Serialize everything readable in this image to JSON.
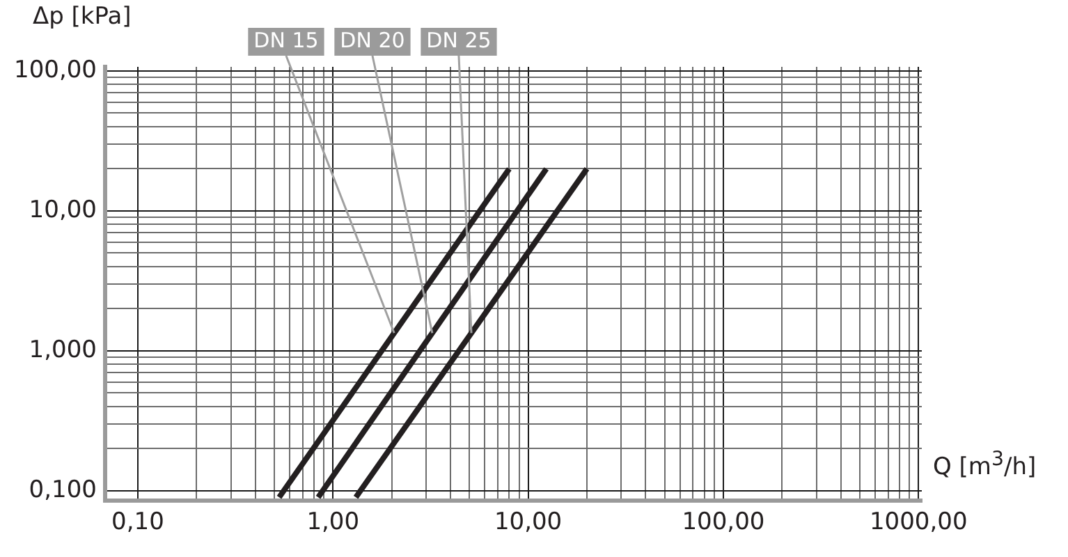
{
  "chart_data": {
    "type": "line",
    "xlabel": "Q [m$^{3}$/h]",
    "ylabel": "Δp [kPa]",
    "log": "xy",
    "grid": true,
    "legend": false,
    "marker": "none",
    "line_style": "solid",
    "xlim": [
      0.068,
      1040
    ],
    "ylim": [
      0.085,
      107
    ],
    "xticks": [
      {
        "value": 0.1,
        "label": "0,10"
      },
      {
        "value": 0.2,
        "label": null
      },
      {
        "value": 0.3,
        "label": null
      },
      {
        "value": 0.4,
        "label": null
      },
      {
        "value": 0.5,
        "label": null
      },
      {
        "value": 0.6,
        "label": null
      },
      {
        "value": 0.7,
        "label": null
      },
      {
        "value": 0.8,
        "label": null
      },
      {
        "value": 0.9,
        "label": null
      },
      {
        "value": 1,
        "label": "1,00"
      },
      {
        "value": 2,
        "label": null
      },
      {
        "value": 3,
        "label": null
      },
      {
        "value": 4,
        "label": null
      },
      {
        "value": 5,
        "label": null
      },
      {
        "value": 6,
        "label": null
      },
      {
        "value": 7,
        "label": null
      },
      {
        "value": 8,
        "label": null
      },
      {
        "value": 9,
        "label": null
      },
      {
        "value": 10,
        "label": "10,00"
      },
      {
        "value": 20,
        "label": null
      },
      {
        "value": 30,
        "label": null
      },
      {
        "value": 40,
        "label": null
      },
      {
        "value": 50,
        "label": null
      },
      {
        "value": 60,
        "label": null
      },
      {
        "value": 70,
        "label": null
      },
      {
        "value": 80,
        "label": null
      },
      {
        "value": 90,
        "label": null
      },
      {
        "value": 100,
        "label": "100,00"
      },
      {
        "value": 200,
        "label": null
      },
      {
        "value": 300,
        "label": null
      },
      {
        "value": 400,
        "label": null
      },
      {
        "value": 500,
        "label": null
      },
      {
        "value": 600,
        "label": null
      },
      {
        "value": 700,
        "label": null
      },
      {
        "value": 800,
        "label": null
      },
      {
        "value": 900,
        "label": null
      },
      {
        "value": 1000,
        "label": "1000,00"
      }
    ],
    "yticks": [
      {
        "value": 0.1,
        "label": "0,100"
      },
      {
        "value": 0.2,
        "label": null
      },
      {
        "value": 0.3,
        "label": null
      },
      {
        "value": 0.4,
        "label": null
      },
      {
        "value": 0.5,
        "label": null
      },
      {
        "value": 0.6,
        "label": null
      },
      {
        "value": 0.7,
        "label": null
      },
      {
        "value": 0.8,
        "label": null
      },
      {
        "value": 0.9,
        "label": null
      },
      {
        "value": 1,
        "label": "1,000"
      },
      {
        "value": 2,
        "label": null
      },
      {
        "value": 3,
        "label": null
      },
      {
        "value": 4,
        "label": null
      },
      {
        "value": 5,
        "label": null
      },
      {
        "value": 6,
        "label": null
      },
      {
        "value": 7,
        "label": null
      },
      {
        "value": 8,
        "label": null
      },
      {
        "value": 9,
        "label": null
      },
      {
        "value": 10,
        "label": "10,00"
      },
      {
        "value": 20,
        "label": null
      },
      {
        "value": 30,
        "label": null
      },
      {
        "value": 40,
        "label": null
      },
      {
        "value": 50,
        "label": null
      },
      {
        "value": 60,
        "label": null
      },
      {
        "value": 70,
        "label": null
      },
      {
        "value": 80,
        "label": null
      },
      {
        "value": 90,
        "label": null
      },
      {
        "value": 100,
        "label": "100,00"
      }
    ],
    "series": [
      {
        "name": "DN 15",
        "color": "#231f20",
        "x": [
          0.53,
          8
        ],
        "values": [
          0.09,
          20
        ]
      },
      {
        "name": "DN 20",
        "color": "#231f20",
        "x": [
          0.84,
          12.4
        ],
        "values": [
          0.09,
          20
        ]
      },
      {
        "name": "DN 25",
        "color": "#231f20",
        "x": [
          1.31,
          20
        ],
        "values": [
          0.09,
          20
        ]
      }
    ]
  }
}
